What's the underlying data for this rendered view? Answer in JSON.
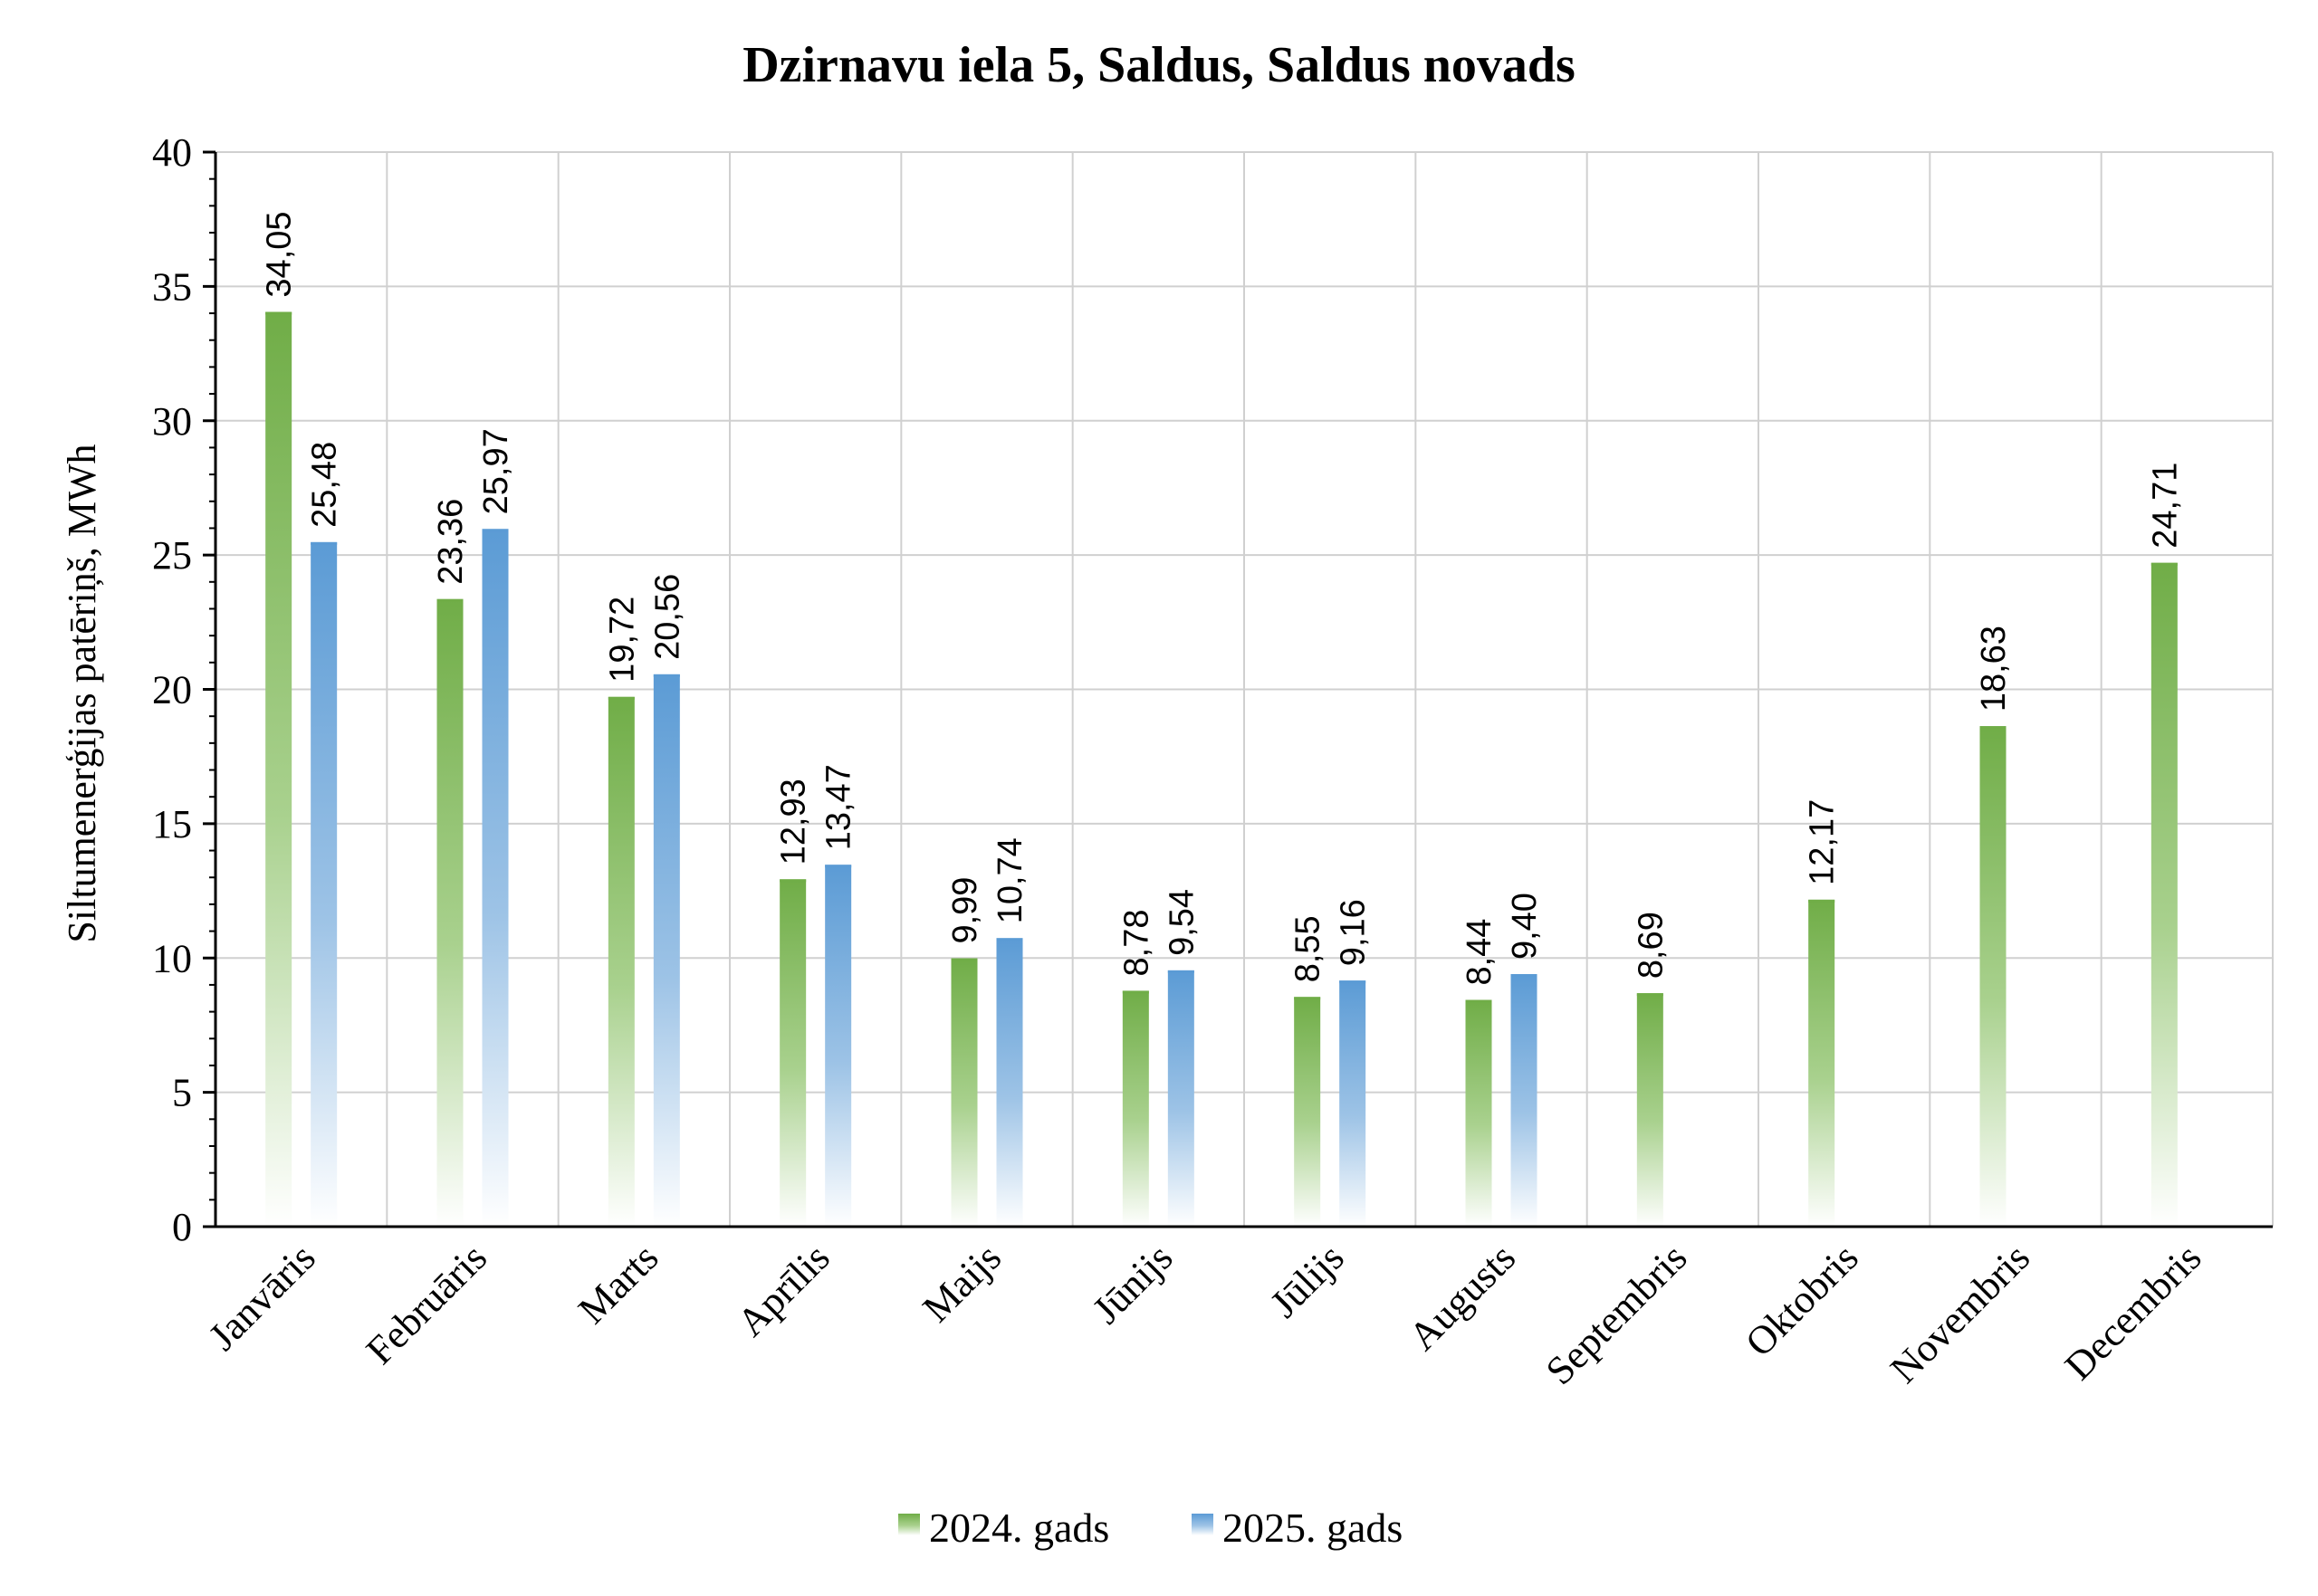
{
  "chart_data": {
    "type": "bar",
    "title": "Dzirnavu iela 5, Saldus, Saldus novads",
    "ylabel": "Siltumenerģijas patēriņš, MWh",
    "xlabel": "",
    "ylim": [
      0,
      40
    ],
    "yticks": [
      0,
      5,
      10,
      15,
      20,
      25,
      30,
      35,
      40
    ],
    "grid": true,
    "legend_position": "bottom",
    "categories": [
      "Janvāris",
      "Februāris",
      "Marts",
      "Aprīlis",
      "Maijs",
      "Jūnijs",
      "Jūlijs",
      "Augusts",
      "Septembris",
      "Oktobris",
      "Novembris",
      "Decembris"
    ],
    "series": [
      {
        "name": "2024. gads",
        "color": "#70ad47",
        "values": [
          34.05,
          23.36,
          19.72,
          12.93,
          9.99,
          8.78,
          8.55,
          8.44,
          8.69,
          12.17,
          18.63,
          24.71
        ],
        "labels": [
          "34,05",
          "23,36",
          "19,72",
          "12,93",
          "9,99",
          "8,78",
          "8,55",
          "8,44",
          "8,69",
          "12,17",
          "18,63",
          "24,71"
        ]
      },
      {
        "name": "2025. gads",
        "color": "#5b9bd5",
        "values": [
          25.48,
          25.97,
          20.56,
          13.47,
          10.74,
          9.54,
          9.16,
          9.4,
          null,
          null,
          null,
          null
        ],
        "labels": [
          "25,48",
          "25,97",
          "20,56",
          "13,47",
          "10,74",
          "9,54",
          "9,16",
          "9,40",
          "",
          "",
          "",
          ""
        ]
      }
    ]
  }
}
